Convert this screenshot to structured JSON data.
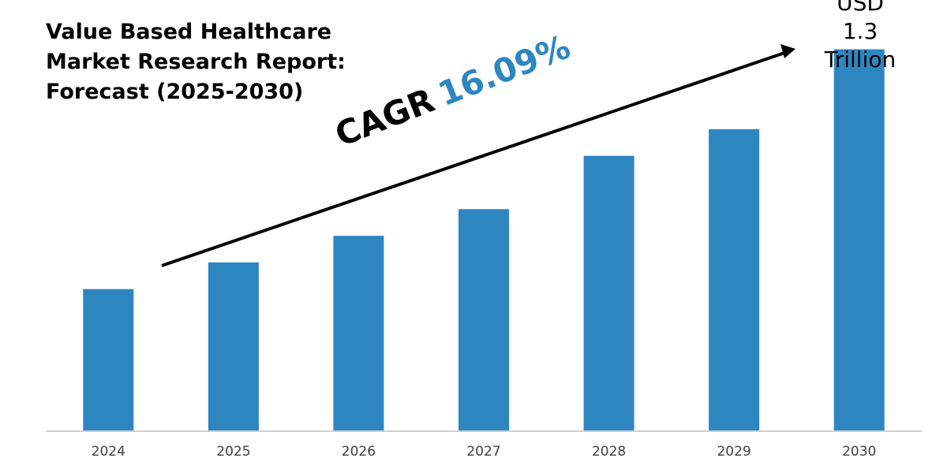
{
  "title_lines": [
    "Value Based Healthcare",
    "Market Research Report:",
    "Forecast (2025-2030)"
  ],
  "callout_lines": [
    "USD",
    "1.3",
    "Trillion"
  ],
  "cagr": {
    "label": "CAGR",
    "value": "16.09%"
  },
  "colors": {
    "bar": "#2e86c1",
    "axis": "#d0d0d0",
    "tick": "#404040",
    "arrow": "#000000"
  },
  "chart_data": {
    "type": "bar",
    "title": "Value Based Healthcare Market Research Report: Forecast (2025-2030)",
    "categories": [
      "2024",
      "2025",
      "2026",
      "2027",
      "2028",
      "2029",
      "2030"
    ],
    "values": [
      0.32,
      0.38,
      0.44,
      0.5,
      0.62,
      0.68,
      0.86
    ],
    "units": "relative scale (USD Trillion, only 2030 labeled as 1.3)",
    "ylim": [
      0,
      0.9
    ],
    "xlabel": "",
    "ylabel": "",
    "grid": false,
    "annotation": "CAGR 16.09% trend arrow"
  }
}
